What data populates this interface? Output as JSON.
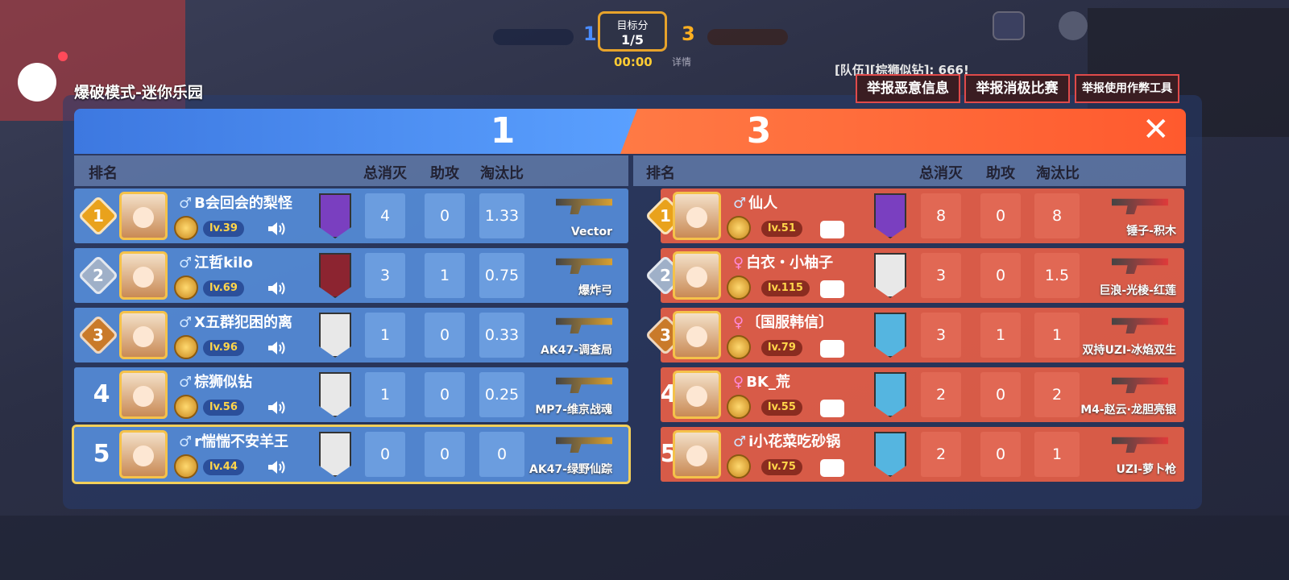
{
  "hud": {
    "blue_score": 1,
    "red_score": 3,
    "target_label": "目标分",
    "target_value": "1/5",
    "timer": "00:00",
    "details": "详情",
    "chat_message": "[队伍][棕狮似钻]: 666!"
  },
  "mode_title": "爆破模式-迷你乐园",
  "report_buttons": [
    "举报恶意信息",
    "举报消极比赛",
    "举报使用作弊工具"
  ],
  "blue_team": {
    "score": 1,
    "headers": {
      "rank": "排名",
      "kills": "总消灭",
      "assists": "助攻",
      "kd": "淘汰比"
    },
    "players": [
      {
        "rank": 1,
        "gender": "♂",
        "name": "B会回会的梨怪",
        "level": "lv.39",
        "kills": 4,
        "assists": 0,
        "kd": 1.33,
        "weapon": "Vector"
      },
      {
        "rank": 2,
        "gender": "♂",
        "name": "江哲kilo",
        "level": "lv.69",
        "kills": 3,
        "assists": 1,
        "kd": 0.75,
        "weapon": "爆炸弓"
      },
      {
        "rank": 3,
        "gender": "♂",
        "name": "X五群犯困的离",
        "level": "lv.96",
        "kills": 1,
        "assists": 0,
        "kd": 0.33,
        "weapon": "AK47-调查局"
      },
      {
        "rank": 4,
        "gender": "♂",
        "name": "棕狮似钻",
        "level": "lv.56",
        "kills": 1,
        "assists": 0,
        "kd": 0.25,
        "weapon": "MP7-维京战魂"
      },
      {
        "rank": 5,
        "gender": "♂",
        "name": "r惴惴不安羊王",
        "level": "lv.44",
        "kills": 0,
        "assists": 0,
        "kd": 0,
        "weapon": "AK47-绿野仙踪"
      }
    ]
  },
  "red_team": {
    "score": 3,
    "headers": {
      "rank": "排名",
      "kills": "总消灭",
      "assists": "助攻",
      "kd": "淘汰比"
    },
    "players": [
      {
        "rank": 1,
        "gender": "♂",
        "name": "仙人",
        "level": "lv.51",
        "kills": 8,
        "assists": 0,
        "kd": 8,
        "weapon": "锤子-积木"
      },
      {
        "rank": 2,
        "gender": "♀",
        "name": "白衣・小柚子",
        "level": "lv.115",
        "kills": 3,
        "assists": 0,
        "kd": 1.5,
        "weapon": "巨浪-光棱-红莲"
      },
      {
        "rank": 3,
        "gender": "♀",
        "name": "〔国服韩信〕",
        "level": "lv.79",
        "kills": 3,
        "assists": 1,
        "kd": 1,
        "weapon": "双持UZI-冰焰双生"
      },
      {
        "rank": 4,
        "gender": "♀",
        "name": "BK_荒",
        "level": "lv.55",
        "kills": 2,
        "assists": 0,
        "kd": 2,
        "weapon": "M4-赵云·龙胆亮银"
      },
      {
        "rank": 5,
        "gender": "♂",
        "name": "i小花菜吃砂锅",
        "level": "lv.75",
        "kills": 2,
        "assists": 0,
        "kd": 1,
        "weapon": "UZI-萝卜枪"
      }
    ]
  }
}
